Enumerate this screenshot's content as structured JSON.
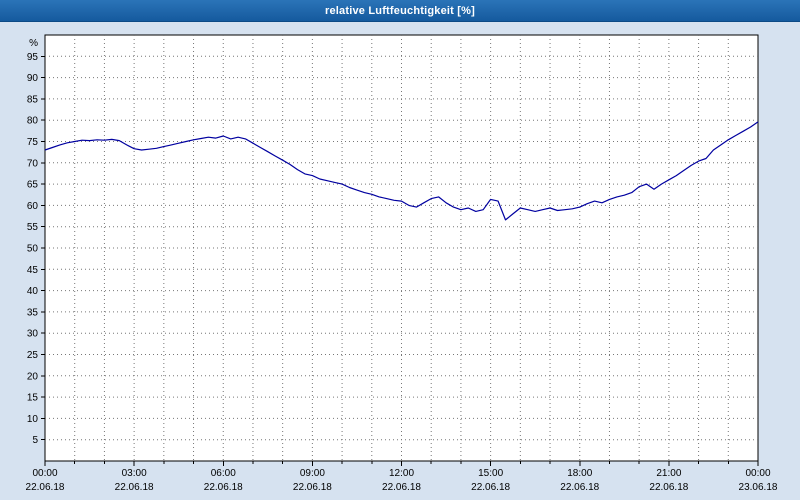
{
  "window": {
    "title": "relative Luftfeuchtigkeit [%]"
  },
  "colors": {
    "titlebar": "#1b64ad",
    "titlebar_text": "#ffffff",
    "background": "#d6e2f0",
    "plot_background": "#ffffff",
    "plot_border": "#000000",
    "grid": "#777777",
    "line": "#0000a0",
    "label": "#000000"
  },
  "chart_data": {
    "type": "line",
    "title": "relative Luftfeuchtigkeit [%]",
    "xlabel": "",
    "ylabel": "%",
    "unit_label": "%",
    "ylim": [
      0,
      100
    ],
    "xlim_hours": [
      0,
      24
    ],
    "grid": {
      "horizontal_step": 5,
      "vertical_step_hours": 1,
      "style": "dotted"
    },
    "legend_position": "none",
    "y_ticks": [
      5,
      10,
      15,
      20,
      25,
      30,
      35,
      40,
      45,
      50,
      55,
      60,
      65,
      70,
      75,
      80,
      85,
      90,
      95
    ],
    "x_ticks": [
      {
        "hour": 0,
        "time": "00:00",
        "date": "22.06.18"
      },
      {
        "hour": 3,
        "time": "03:00",
        "date": "22.06.18"
      },
      {
        "hour": 6,
        "time": "06:00",
        "date": "22.06.18"
      },
      {
        "hour": 9,
        "time": "09:00",
        "date": "22.06.18"
      },
      {
        "hour": 12,
        "time": "12:00",
        "date": "22.06.18"
      },
      {
        "hour": 15,
        "time": "15:00",
        "date": "22.06.18"
      },
      {
        "hour": 18,
        "time": "18:00",
        "date": "22.06.18"
      },
      {
        "hour": 21,
        "time": "21:00",
        "date": "22.06.18"
      },
      {
        "hour": 24,
        "time": "00:00",
        "date": "23.06.18"
      }
    ],
    "series": [
      {
        "name": "relative Luftfeuchtigkeit",
        "color": "#0000a0",
        "points": [
          [
            0,
            73
          ],
          [
            0.25,
            73.6
          ],
          [
            0.5,
            74.2
          ],
          [
            0.75,
            74.7
          ],
          [
            1,
            75
          ],
          [
            1.25,
            75.3
          ],
          [
            1.5,
            75.2
          ],
          [
            1.75,
            75.4
          ],
          [
            2,
            75.3
          ],
          [
            2.25,
            75.5
          ],
          [
            2.5,
            75.2
          ],
          [
            2.75,
            74.2
          ],
          [
            3,
            73.3
          ],
          [
            3.25,
            73
          ],
          [
            3.5,
            73.2
          ],
          [
            3.75,
            73.4
          ],
          [
            4,
            73.8
          ],
          [
            4.25,
            74.2
          ],
          [
            4.5,
            74.6
          ],
          [
            4.75,
            75
          ],
          [
            5,
            75.4
          ],
          [
            5.25,
            75.7
          ],
          [
            5.5,
            76
          ],
          [
            5.75,
            75.8
          ],
          [
            6,
            76.3
          ],
          [
            6.25,
            75.6
          ],
          [
            6.5,
            76
          ],
          [
            6.75,
            75.6
          ],
          [
            7,
            74.6
          ],
          [
            7.25,
            73.6
          ],
          [
            7.5,
            72.6
          ],
          [
            7.75,
            71.6
          ],
          [
            8,
            70.6
          ],
          [
            8.25,
            69.6
          ],
          [
            8.5,
            68.4
          ],
          [
            8.75,
            67.4
          ],
          [
            9,
            67
          ],
          [
            9.25,
            66.2
          ],
          [
            9.5,
            65.8
          ],
          [
            9.75,
            65.4
          ],
          [
            10,
            65
          ],
          [
            10.25,
            64.2
          ],
          [
            10.5,
            63.6
          ],
          [
            10.75,
            63
          ],
          [
            11,
            62.6
          ],
          [
            11.25,
            62
          ],
          [
            11.5,
            61.6
          ],
          [
            11.75,
            61.2
          ],
          [
            12,
            61
          ],
          [
            12.25,
            60
          ],
          [
            12.5,
            59.6
          ],
          [
            12.75,
            60.6
          ],
          [
            13,
            61.6
          ],
          [
            13.25,
            62
          ],
          [
            13.5,
            60.6
          ],
          [
            13.75,
            59.6
          ],
          [
            14,
            59
          ],
          [
            14.25,
            59.4
          ],
          [
            14.5,
            58.6
          ],
          [
            14.75,
            59
          ],
          [
            15,
            61.4
          ],
          [
            15.25,
            61
          ],
          [
            15.5,
            56.6
          ],
          [
            15.75,
            58
          ],
          [
            16,
            59.4
          ],
          [
            16.25,
            59
          ],
          [
            16.5,
            58.6
          ],
          [
            16.75,
            59
          ],
          [
            17,
            59.4
          ],
          [
            17.25,
            58.8
          ],
          [
            17.5,
            59
          ],
          [
            17.75,
            59.2
          ],
          [
            18,
            59.6
          ],
          [
            18.25,
            60.4
          ],
          [
            18.5,
            61
          ],
          [
            18.75,
            60.6
          ],
          [
            19,
            61.4
          ],
          [
            19.25,
            62
          ],
          [
            19.5,
            62.4
          ],
          [
            19.75,
            63
          ],
          [
            20,
            64.4
          ],
          [
            20.25,
            65
          ],
          [
            20.5,
            63.8
          ],
          [
            20.75,
            65
          ],
          [
            21,
            66
          ],
          [
            21.25,
            67
          ],
          [
            21.5,
            68.2
          ],
          [
            21.75,
            69.4
          ],
          [
            22,
            70.4
          ],
          [
            22.25,
            71
          ],
          [
            22.5,
            73
          ],
          [
            22.75,
            74.2
          ],
          [
            23,
            75.4
          ],
          [
            23.25,
            76.4
          ],
          [
            23.5,
            77.4
          ],
          [
            23.75,
            78.4
          ],
          [
            24,
            79.6
          ]
        ]
      }
    ]
  }
}
